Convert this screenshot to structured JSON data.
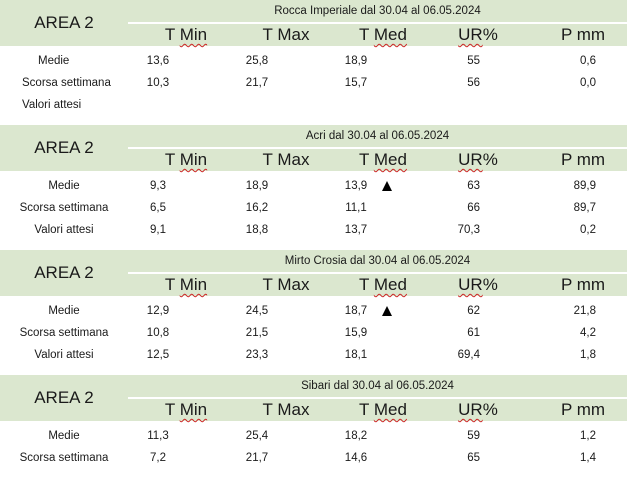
{
  "columns": [
    "T Min",
    "T Max",
    "T Med",
    "UR%",
    "P mm"
  ],
  "row_labels": [
    "Medie",
    "Scorsa settimana",
    "Valori attesi"
  ],
  "area_label": "AREA 2",
  "blocks": [
    {
      "title": "Rocca Imperiale  dal 30.04 al 06.05.2024",
      "rows": [
        [
          "13,6",
          "25,8",
          "18,9",
          "55",
          "0,6"
        ],
        [
          "10,3",
          "21,7",
          "15,7",
          "56",
          "0,0"
        ],
        [
          "",
          "",
          "",
          "",
          ""
        ]
      ],
      "trend_up_row": null
    },
    {
      "title": "Acri dal 30.04 al 06.05.2024",
      "rows": [
        [
          "9,3",
          "18,9",
          "13,9",
          "63",
          "89,9"
        ],
        [
          "6,5",
          "16,2",
          "11,1",
          "66",
          "89,7"
        ],
        [
          "9,1",
          "18,8",
          "13,7",
          "70,3",
          "0,2"
        ]
      ],
      "trend_up_row": 0
    },
    {
      "title": "Mirto Crosia dal 30.04 al 06.05.2024",
      "rows": [
        [
          "12,9",
          "24,5",
          "18,7",
          "62",
          "21,8"
        ],
        [
          "10,8",
          "21,5",
          "15,9",
          "61",
          "4,2"
        ],
        [
          "12,5",
          "23,3",
          "18,1",
          "69,4",
          "1,8"
        ]
      ],
      "trend_up_row": 0
    },
    {
      "title": "Sibari dal 30.04 al 06.05.2024",
      "rows": [
        [
          "11,3",
          "25,4",
          "18,2",
          "59",
          "1,2"
        ],
        [
          "7,2",
          "21,7",
          "14,6",
          "65",
          "1,4"
        ]
      ],
      "trend_up_row": null
    }
  ],
  "colors": {
    "header_bg": "#dbe7cf",
    "text": "#1a1a1a",
    "spellcheck": "#cc2222"
  }
}
